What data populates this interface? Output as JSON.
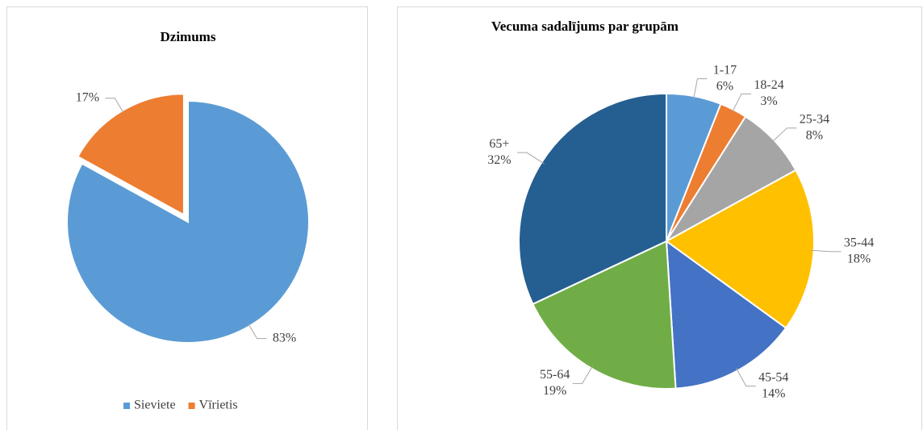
{
  "chart_data": [
    {
      "type": "pie",
      "title": "Dzimums",
      "categories": [
        "Sieviete",
        "Vīrietis"
      ],
      "values": [
        83,
        17
      ],
      "value_labels": [
        "83%",
        "17%"
      ],
      "colors": [
        "#5b9bd5",
        "#ed7d31"
      ],
      "explode": [
        false,
        true
      ],
      "legend": "bottom",
      "label_category": false
    },
    {
      "type": "pie",
      "title": "Vecuma sadalījums par grupām",
      "categories": [
        "1-17",
        "18-24",
        "25-34",
        "35-44",
        "45-54",
        "55-64",
        "65+"
      ],
      "values": [
        6,
        3,
        8,
        18,
        14,
        19,
        32
      ],
      "value_labels": [
        "6%",
        "3%",
        "8%",
        "18%",
        "14%",
        "19%",
        "32%"
      ],
      "colors": [
        "#5b9bd5",
        "#ed7d31",
        "#a5a5a5",
        "#ffc000",
        "#4472c4",
        "#70ad47",
        "#255e91"
      ],
      "explode": [
        false,
        false,
        false,
        false,
        false,
        false,
        false
      ],
      "legend": "none",
      "label_category": true
    }
  ]
}
